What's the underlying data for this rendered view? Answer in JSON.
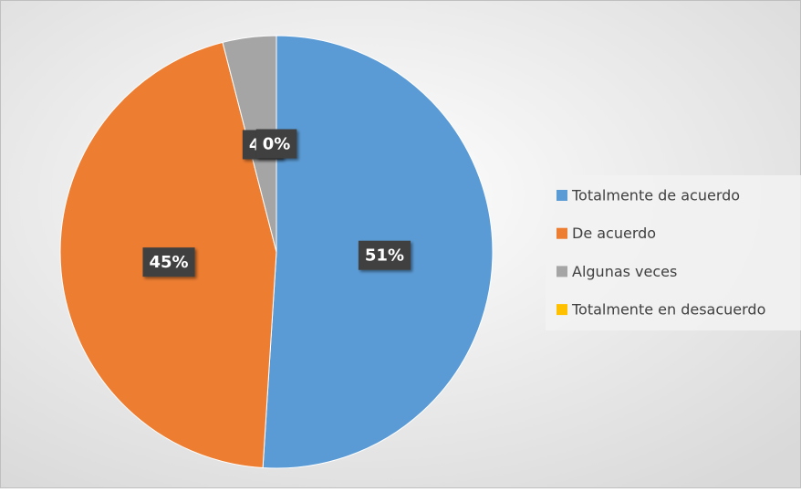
{
  "chart_data": {
    "type": "pie",
    "categories": [
      "Totalmente de acuerdo",
      "De acuerdo",
      "Algunas veces",
      "Totalmente en desacuerdo"
    ],
    "values": [
      51,
      45,
      4,
      0
    ],
    "value_labels": [
      "51%",
      "45%",
      "4%",
      "0%"
    ],
    "colors": [
      "#5b9bd5",
      "#ed7d31",
      "#a5a5a5",
      "#ffc000"
    ],
    "legend": "right"
  }
}
